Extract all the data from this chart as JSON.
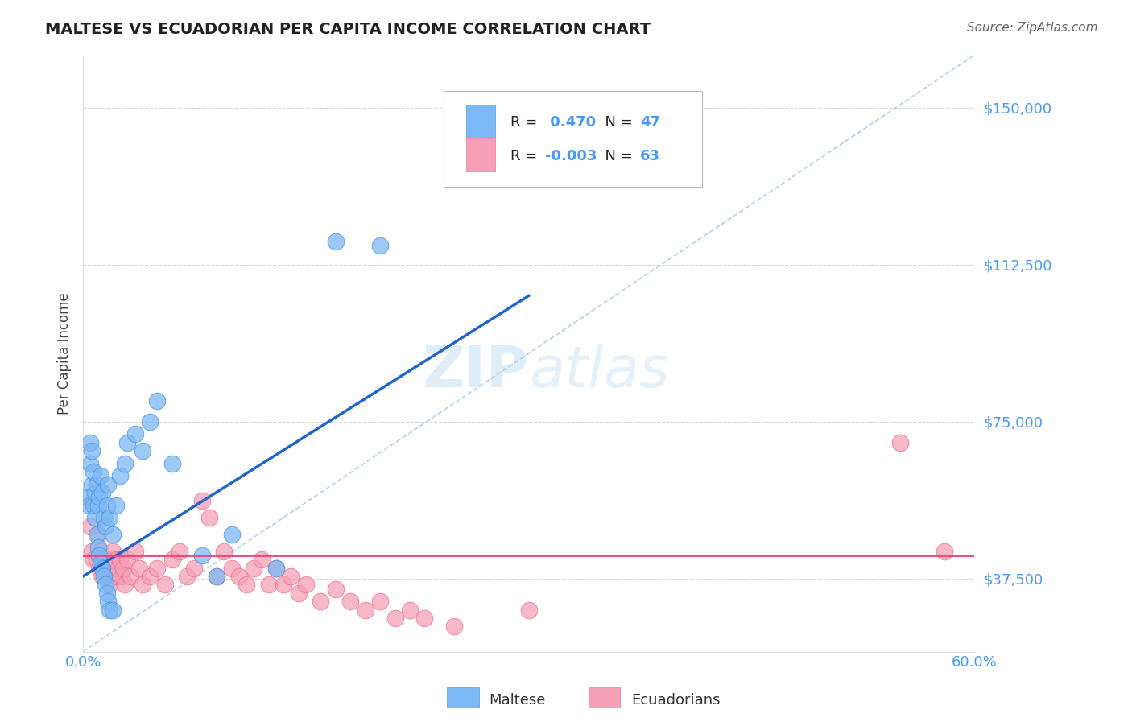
{
  "title": "MALTESE VS ECUADORIAN PER CAPITA INCOME CORRELATION CHART",
  "source": "Source: ZipAtlas.com",
  "ylabel": "Per Capita Income",
  "xlim": [
    0.0,
    0.6
  ],
  "ylim": [
    20000,
    162500
  ],
  "yticks": [
    37500,
    75000,
    112500,
    150000
  ],
  "ytick_labels": [
    "$37,500",
    "$75,000",
    "$112,500",
    "$150,000"
  ],
  "grid_color": "#cccccc",
  "background_color": "#ffffff",
  "maltese_color": "#7bb8f5",
  "ecuadorian_color": "#f5a0b5",
  "maltese_edge_color": "#5599dd",
  "ecuadorian_edge_color": "#ee7799",
  "maltese_line_color": "#2266cc",
  "ecuadorian_line_color": "#ee4477",
  "dashed_line_color": "#aaccee",
  "ytick_color": "#4499ff",
  "xtick_color": "#4499ff",
  "maltese_R": 0.47,
  "maltese_N": 47,
  "ecuadorian_R": -0.003,
  "ecuadorian_N": 63,
  "watermark_zip": "ZIP",
  "watermark_atlas": "atlas",
  "maltese_points": [
    [
      0.003,
      57000
    ],
    [
      0.004,
      55000
    ],
    [
      0.005,
      65000
    ],
    [
      0.005,
      70000
    ],
    [
      0.006,
      68000
    ],
    [
      0.006,
      60000
    ],
    [
      0.007,
      63000
    ],
    [
      0.007,
      55000
    ],
    [
      0.008,
      58000
    ],
    [
      0.008,
      52000
    ],
    [
      0.009,
      60000
    ],
    [
      0.009,
      48000
    ],
    [
      0.01,
      55000
    ],
    [
      0.01,
      45000
    ],
    [
      0.011,
      57000
    ],
    [
      0.011,
      43000
    ],
    [
      0.012,
      62000
    ],
    [
      0.012,
      41000
    ],
    [
      0.013,
      58000
    ],
    [
      0.013,
      40000
    ],
    [
      0.014,
      52000
    ],
    [
      0.014,
      38000
    ],
    [
      0.015,
      50000
    ],
    [
      0.015,
      36000
    ],
    [
      0.016,
      55000
    ],
    [
      0.016,
      34000
    ],
    [
      0.017,
      60000
    ],
    [
      0.017,
      32000
    ],
    [
      0.018,
      52000
    ],
    [
      0.018,
      30000
    ],
    [
      0.02,
      48000
    ],
    [
      0.02,
      30000
    ],
    [
      0.022,
      55000
    ],
    [
      0.025,
      62000
    ],
    [
      0.028,
      65000
    ],
    [
      0.03,
      70000
    ],
    [
      0.035,
      72000
    ],
    [
      0.04,
      68000
    ],
    [
      0.045,
      75000
    ],
    [
      0.05,
      80000
    ],
    [
      0.06,
      65000
    ],
    [
      0.08,
      43000
    ],
    [
      0.09,
      38000
    ],
    [
      0.1,
      48000
    ],
    [
      0.13,
      40000
    ],
    [
      0.17,
      118000
    ],
    [
      0.2,
      117000
    ]
  ],
  "ecuadorian_points": [
    [
      0.005,
      50000
    ],
    [
      0.006,
      44000
    ],
    [
      0.007,
      42000
    ],
    [
      0.008,
      55000
    ],
    [
      0.009,
      42000
    ],
    [
      0.01,
      48000
    ],
    [
      0.011,
      40000
    ],
    [
      0.012,
      44000
    ],
    [
      0.013,
      38000
    ],
    [
      0.014,
      42000
    ],
    [
      0.015,
      40000
    ],
    [
      0.016,
      38000
    ],
    [
      0.017,
      42000
    ],
    [
      0.018,
      36000
    ],
    [
      0.019,
      40000
    ],
    [
      0.02,
      44000
    ],
    [
      0.021,
      38000
    ],
    [
      0.022,
      42000
    ],
    [
      0.023,
      38000
    ],
    [
      0.024,
      40000
    ],
    [
      0.025,
      42000
    ],
    [
      0.026,
      38000
    ],
    [
      0.027,
      40000
    ],
    [
      0.028,
      36000
    ],
    [
      0.03,
      42000
    ],
    [
      0.032,
      38000
    ],
    [
      0.035,
      44000
    ],
    [
      0.038,
      40000
    ],
    [
      0.04,
      36000
    ],
    [
      0.045,
      38000
    ],
    [
      0.05,
      40000
    ],
    [
      0.055,
      36000
    ],
    [
      0.06,
      42000
    ],
    [
      0.065,
      44000
    ],
    [
      0.07,
      38000
    ],
    [
      0.075,
      40000
    ],
    [
      0.08,
      56000
    ],
    [
      0.085,
      52000
    ],
    [
      0.09,
      38000
    ],
    [
      0.095,
      44000
    ],
    [
      0.1,
      40000
    ],
    [
      0.105,
      38000
    ],
    [
      0.11,
      36000
    ],
    [
      0.115,
      40000
    ],
    [
      0.12,
      42000
    ],
    [
      0.125,
      36000
    ],
    [
      0.13,
      40000
    ],
    [
      0.135,
      36000
    ],
    [
      0.14,
      38000
    ],
    [
      0.145,
      34000
    ],
    [
      0.15,
      36000
    ],
    [
      0.16,
      32000
    ],
    [
      0.17,
      35000
    ],
    [
      0.18,
      32000
    ],
    [
      0.19,
      30000
    ],
    [
      0.2,
      32000
    ],
    [
      0.21,
      28000
    ],
    [
      0.22,
      30000
    ],
    [
      0.23,
      28000
    ],
    [
      0.25,
      26000
    ],
    [
      0.3,
      30000
    ],
    [
      0.55,
      70000
    ],
    [
      0.58,
      44000
    ]
  ],
  "maltese_line_x": [
    0.0,
    0.3
  ],
  "maltese_line_y": [
    38000,
    105000
  ],
  "ecuadorian_line_y": 43000,
  "dashed_line_x": [
    0.0,
    0.6
  ],
  "dashed_line_y": [
    20000,
    162500
  ]
}
